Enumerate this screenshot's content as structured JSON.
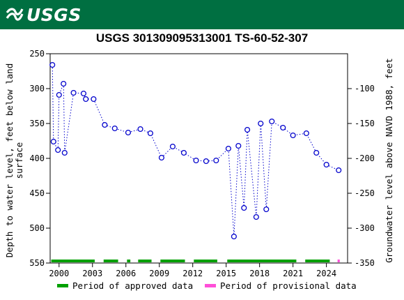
{
  "banner": {
    "logo_text": "USGS",
    "color": "#006F41"
  },
  "chart_data": {
    "type": "scatter",
    "title": "USGS 301309095313001 TS-60-52-307",
    "ylabel_left": "Depth to water level, feet below land surface",
    "ylabel_left_lines": [
      "Depth to water level, feet below land",
      "surface"
    ],
    "ylabel_right": "Groundwater level above NAVD 1988, feet",
    "ylim_left": [
      550,
      250
    ],
    "left_ticks": [
      250,
      300,
      350,
      400,
      450,
      500,
      550
    ],
    "right_ticks": [
      -100,
      -150,
      -200,
      -250,
      -300,
      -350
    ],
    "right_offset": 200,
    "xlim": [
      1999.2,
      2025.9
    ],
    "x_ticks": [
      2000,
      2003,
      2006,
      2009,
      2012,
      2015,
      2018,
      2021,
      2024
    ],
    "grid": false,
    "series": [
      {
        "marker_color": "#0000CC",
        "line": "dotted",
        "points": [
          [
            1999.4,
            266
          ],
          [
            1999.5,
            376
          ],
          [
            1999.9,
            388
          ],
          [
            2000.0,
            309
          ],
          [
            2000.4,
            293
          ],
          [
            2000.5,
            392
          ],
          [
            2001.3,
            306
          ],
          [
            2002.2,
            307
          ],
          [
            2002.4,
            315
          ],
          [
            2003.1,
            315
          ],
          [
            2004.1,
            352
          ],
          [
            2005.0,
            357
          ],
          [
            2006.2,
            363
          ],
          [
            2007.3,
            358
          ],
          [
            2008.2,
            364
          ],
          [
            2009.2,
            399
          ],
          [
            2010.2,
            383
          ],
          [
            2011.2,
            392
          ],
          [
            2012.3,
            403
          ],
          [
            2013.2,
            404
          ],
          [
            2014.1,
            403
          ],
          [
            2015.2,
            386
          ],
          [
            2015.7,
            512
          ],
          [
            2016.1,
            382
          ],
          [
            2016.6,
            471
          ],
          [
            2016.9,
            359
          ],
          [
            2017.7,
            484
          ],
          [
            2018.1,
            350
          ],
          [
            2018.6,
            473
          ],
          [
            2019.1,
            347
          ],
          [
            2020.1,
            356
          ],
          [
            2021.0,
            367
          ],
          [
            2022.2,
            364
          ],
          [
            2023.1,
            392
          ],
          [
            2024.0,
            409
          ],
          [
            2025.1,
            417
          ]
        ]
      }
    ],
    "approved_periods": [
      [
        1999.3,
        2003.2
      ],
      [
        2004.0,
        2005.3
      ],
      [
        2006.1,
        2006.4
      ],
      [
        2007.1,
        2008.3
      ],
      [
        2009.1,
        2011.3
      ],
      [
        2012.1,
        2014.2
      ],
      [
        2015.1,
        2021.3
      ],
      [
        2022.1,
        2024.3
      ]
    ],
    "provisional_periods": [
      [
        2025.0,
        2025.2
      ]
    ],
    "legend": {
      "approved_label": "Period of approved data",
      "provisional_label": "Period of provisional data",
      "approved_color": "#00A000",
      "provisional_color": "#FF4FD8",
      "placement": "bottom"
    }
  }
}
